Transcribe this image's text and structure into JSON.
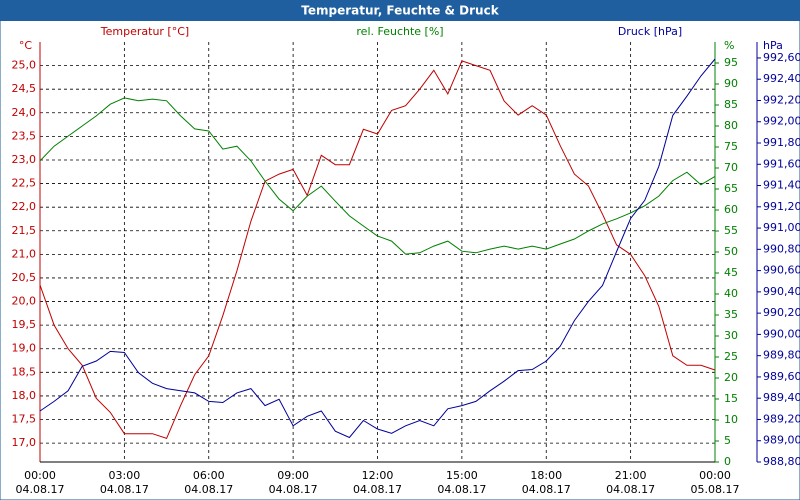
{
  "chart_data": {
    "type": "line",
    "title": "Temperatur, Feuchte & Druck",
    "x": [
      0,
      0.5,
      1,
      1.5,
      2,
      2.5,
      3,
      3.5,
      4,
      4.5,
      5,
      5.5,
      6,
      6.5,
      7,
      7.5,
      8,
      8.5,
      9,
      9.5,
      10,
      10.5,
      11,
      11.5,
      12,
      12.5,
      13,
      13.5,
      14,
      14.5,
      15,
      15.5,
      16,
      16.5,
      17,
      17.5,
      18,
      18.5,
      19,
      19.5,
      20,
      20.5,
      21,
      21.5,
      22,
      22.5,
      23,
      23.5,
      24
    ],
    "xlim": [
      0,
      24
    ],
    "xticks": [
      {
        "value": 0,
        "label": "00:00"
      },
      {
        "value": 3,
        "label": "03:00"
      },
      {
        "value": 6,
        "label": "06:00"
      },
      {
        "value": 9,
        "label": "09:00"
      },
      {
        "value": 12,
        "label": "12:00"
      },
      {
        "value": 15,
        "label": "15:00"
      },
      {
        "value": 18,
        "label": "18:00"
      },
      {
        "value": 21,
        "label": "21:00"
      },
      {
        "value": 24,
        "label": "00:00"
      }
    ],
    "xtick_dates": [
      "04.08.17",
      "04.08.17",
      "04.08.17",
      "04.08.17",
      "04.08.17",
      "04.08.17",
      "04.08.17",
      "04.08.17",
      "05.08.17"
    ],
    "y_unit": "°C",
    "y2_unit": "%",
    "y3_unit": "hPa",
    "ylim": [
      16.6,
      25.5
    ],
    "yticks": [
      {
        "value": 17,
        "label": "17,0"
      },
      {
        "value": 17.5,
        "label": "17,5"
      },
      {
        "value": 18,
        "label": "18,0"
      },
      {
        "value": 18.5,
        "label": "18,5"
      },
      {
        "value": 19,
        "label": "19,0"
      },
      {
        "value": 19.5,
        "label": "19,5"
      },
      {
        "value": 20,
        "label": "20,0"
      },
      {
        "value": 20.5,
        "label": "20,5"
      },
      {
        "value": 21,
        "label": "21,0"
      },
      {
        "value": 21.5,
        "label": "21,5"
      },
      {
        "value": 22,
        "label": "22,0"
      },
      {
        "value": 22.5,
        "label": "22,5"
      },
      {
        "value": 23,
        "label": "23,0"
      },
      {
        "value": 23.5,
        "label": "23,5"
      },
      {
        "value": 24,
        "label": "24,0"
      },
      {
        "value": 24.5,
        "label": "24,5"
      },
      {
        "value": 25,
        "label": "25,0"
      }
    ],
    "y2lim": [
      0,
      100
    ],
    "y2ticks": [
      0,
      5,
      10,
      15,
      20,
      25,
      30,
      35,
      40,
      45,
      50,
      55,
      60,
      65,
      70,
      75,
      80,
      85,
      90,
      95
    ],
    "y3lim": [
      988.8,
      992.75
    ],
    "y3ticks": [
      {
        "value": 988.8,
        "label": "988,80"
      },
      {
        "value": 989,
        "label": "989,00"
      },
      {
        "value": 989.2,
        "label": "989,20"
      },
      {
        "value": 989.4,
        "label": "989,40"
      },
      {
        "value": 989.6,
        "label": "989,60"
      },
      {
        "value": 989.8,
        "label": "989,80"
      },
      {
        "value": 990,
        "label": "990,00"
      },
      {
        "value": 990.2,
        "label": "990,20"
      },
      {
        "value": 990.4,
        "label": "990,40"
      },
      {
        "value": 990.6,
        "label": "990,60"
      },
      {
        "value": 990.8,
        "label": "990,80"
      },
      {
        "value": 991,
        "label": "991,00"
      },
      {
        "value": 991.2,
        "label": "991,20"
      },
      {
        "value": 991.4,
        "label": "991,40"
      },
      {
        "value": 991.6,
        "label": "991,60"
      },
      {
        "value": 991.8,
        "label": "991,80"
      },
      {
        "value": 992,
        "label": "992,00"
      },
      {
        "value": 992.2,
        "label": "992,20"
      },
      {
        "value": 992.4,
        "label": "992,40"
      },
      {
        "value": 992.6,
        "label": "992,60"
      }
    ],
    "grid": true,
    "series": [
      {
        "name": "Temperatur [°C]",
        "color": "#c00000",
        "axis": "y",
        "values": [
          20.35,
          19.5,
          19.0,
          18.65,
          17.95,
          17.65,
          17.2,
          17.2,
          17.2,
          17.1,
          17.8,
          18.45,
          18.85,
          19.7,
          20.65,
          21.7,
          22.55,
          22.7,
          22.8,
          22.25,
          23.1,
          22.9,
          22.9,
          23.65,
          23.55,
          24.05,
          24.15,
          24.5,
          24.9,
          24.4,
          25.1,
          25.0,
          24.9,
          24.25,
          23.95,
          24.15,
          23.95,
          23.3,
          22.7,
          22.45,
          21.85,
          21.2,
          21.0,
          20.55,
          19.9,
          18.85,
          18.65,
          18.65,
          18.55
        ]
      },
      {
        "name": "rel. Feuchte [%]",
        "color": "#008000",
        "axis": "y2",
        "values": [
          71.7,
          75.2,
          77.6,
          80,
          82.4,
          85.2,
          86.7,
          86,
          86.4,
          86,
          82.4,
          79.3,
          78.8,
          74.5,
          75.2,
          71.7,
          66.9,
          62.6,
          59.8,
          63.3,
          65.7,
          62.1,
          58.6,
          56.2,
          53.8,
          52.6,
          49.5,
          49.8,
          51.4,
          52.6,
          50.2,
          49.8,
          50.7,
          51.4,
          50.7,
          51.4,
          50.7,
          51.9,
          53.1,
          55,
          56.7,
          57.9,
          59.3,
          61,
          63.3,
          67,
          69,
          66,
          68
        ]
      },
      {
        "name": "Druck [hPa]",
        "color": "#000099",
        "axis": "y3",
        "values": [
          989.28,
          989.37,
          989.47,
          989.7,
          989.75,
          989.84,
          989.83,
          989.64,
          989.54,
          989.49,
          989.47,
          989.45,
          989.37,
          989.36,
          989.45,
          989.49,
          989.33,
          989.39,
          989.14,
          989.23,
          989.28,
          989.09,
          989.03,
          989.19,
          989.11,
          989.07,
          989.14,
          989.19,
          989.14,
          989.3,
          989.33,
          989.37,
          989.47,
          989.56,
          989.66,
          989.67,
          989.75,
          989.89,
          990.13,
          990.31,
          990.46,
          990.78,
          991.09,
          991.26,
          991.58,
          992.06,
          992.24,
          992.43,
          992.59
        ]
      }
    ]
  }
}
